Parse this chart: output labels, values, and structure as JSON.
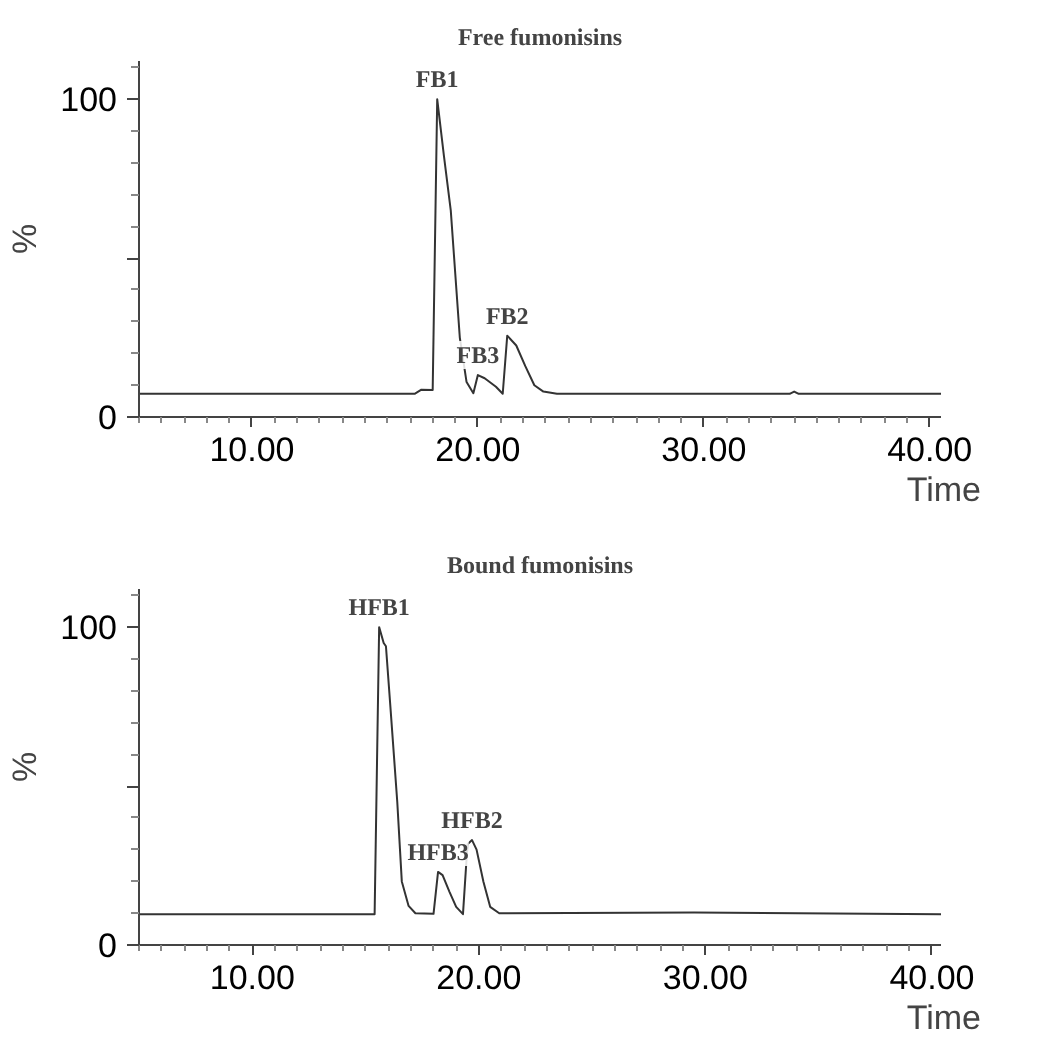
{
  "chart_data": [
    {
      "type": "line",
      "title": "Free fumonisins",
      "xlabel": "Time",
      "ylabel": "%",
      "xlim": [
        5.0,
        40.5
      ],
      "ylim": [
        0,
        112
      ],
      "xticks": [
        {
          "value": 10,
          "label": "10.00"
        },
        {
          "value": 20,
          "label": "20.00"
        },
        {
          "value": 30,
          "label": "30.00"
        },
        {
          "value": 40,
          "label": "40.00"
        }
      ],
      "yticks": [
        0,
        {
          "value": 50,
          "label": null
        },
        100
      ],
      "grid": false,
      "marker": "none",
      "line_style": "solid",
      "annotations": [
        {
          "text": "FB1",
          "x": 18.2,
          "y": 100
        },
        {
          "text": "FB3",
          "x": 20.0,
          "y": 13.2
        },
        {
          "text": "FB2",
          "x": 21.3,
          "y": 25.6
        }
      ],
      "series": [
        {
          "color": "#333333",
          "x": [
            5.0,
            17.2,
            17.5,
            18.0,
            18.2,
            18.5,
            18.8,
            19.0,
            19.2,
            19.5,
            19.8,
            20.0,
            20.3,
            20.8,
            21.1,
            21.3,
            21.7,
            22.1,
            22.5,
            22.9,
            23.5,
            33.8,
            34.0,
            34.2,
            40.5
          ],
          "values": [
            7.3,
            7.3,
            8.6,
            8.5,
            100,
            82,
            65,
            45,
            25,
            11,
            7.5,
            13.2,
            12.2,
            9.5,
            7.3,
            25.6,
            22.5,
            16,
            10,
            8,
            7.3,
            7.3,
            8,
            7.3,
            7.3
          ]
        }
      ]
    },
    {
      "type": "line",
      "title": "Bound fumonisins",
      "xlabel": "Time",
      "ylabel": "%",
      "xlim": [
        5.0,
        40.4
      ],
      "ylim": [
        0,
        112
      ],
      "xticks": [
        {
          "value": 10,
          "label": "10.00"
        },
        {
          "value": 20,
          "label": "20.00"
        },
        {
          "value": 30,
          "label": "30.00"
        },
        {
          "value": 40,
          "label": "40.00"
        }
      ],
      "yticks": [
        0,
        {
          "value": 50,
          "label": null
        },
        100
      ],
      "grid": false,
      "marker": "none",
      "line_style": "solid",
      "annotations": [
        {
          "text": "HFB1",
          "x": 15.6,
          "y": 100
        },
        {
          "text": "HFB3",
          "x": 18.2,
          "y": 23
        },
        {
          "text": "HFB2",
          "x": 19.7,
          "y": 33
        }
      ],
      "series": [
        {
          "color": "#333333",
          "x": [
            5.0,
            15.4,
            15.6,
            15.8,
            15.9,
            16.1,
            16.4,
            16.6,
            16.9,
            17.2,
            18.0,
            18.2,
            18.4,
            18.7,
            19.0,
            19.3,
            19.5,
            19.7,
            19.9,
            20.2,
            20.5,
            20.9,
            29.5,
            40.4
          ],
          "values": [
            9.7,
            9.7,
            100,
            95,
            94,
            74.6,
            45,
            20,
            12.3,
            10,
            9.8,
            23,
            22,
            16.8,
            12,
            9.7,
            31.7,
            33,
            30,
            20,
            12,
            10,
            10.2,
            9.7
          ]
        }
      ]
    }
  ]
}
